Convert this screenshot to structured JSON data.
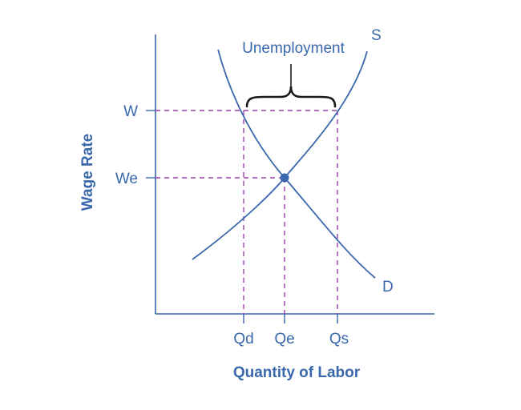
{
  "chart_data": {
    "type": "line",
    "xlabel": "Quantity of Labor",
    "ylabel": "Wage Rate",
    "x_ticks": [
      "Qd",
      "Qe",
      "Qs"
    ],
    "y_ticks": [
      "W",
      "We"
    ],
    "series": [
      {
        "name": "S"
      },
      {
        "name": "D"
      }
    ],
    "annotation": "Unemployment",
    "equilibrium_point": {
      "x": "Qe",
      "y": "We"
    },
    "colors": {
      "curve": "#3a68ad",
      "dashed": "#9b3fae",
      "brace": "#1a1a1a",
      "text": "#3a68ad"
    }
  }
}
